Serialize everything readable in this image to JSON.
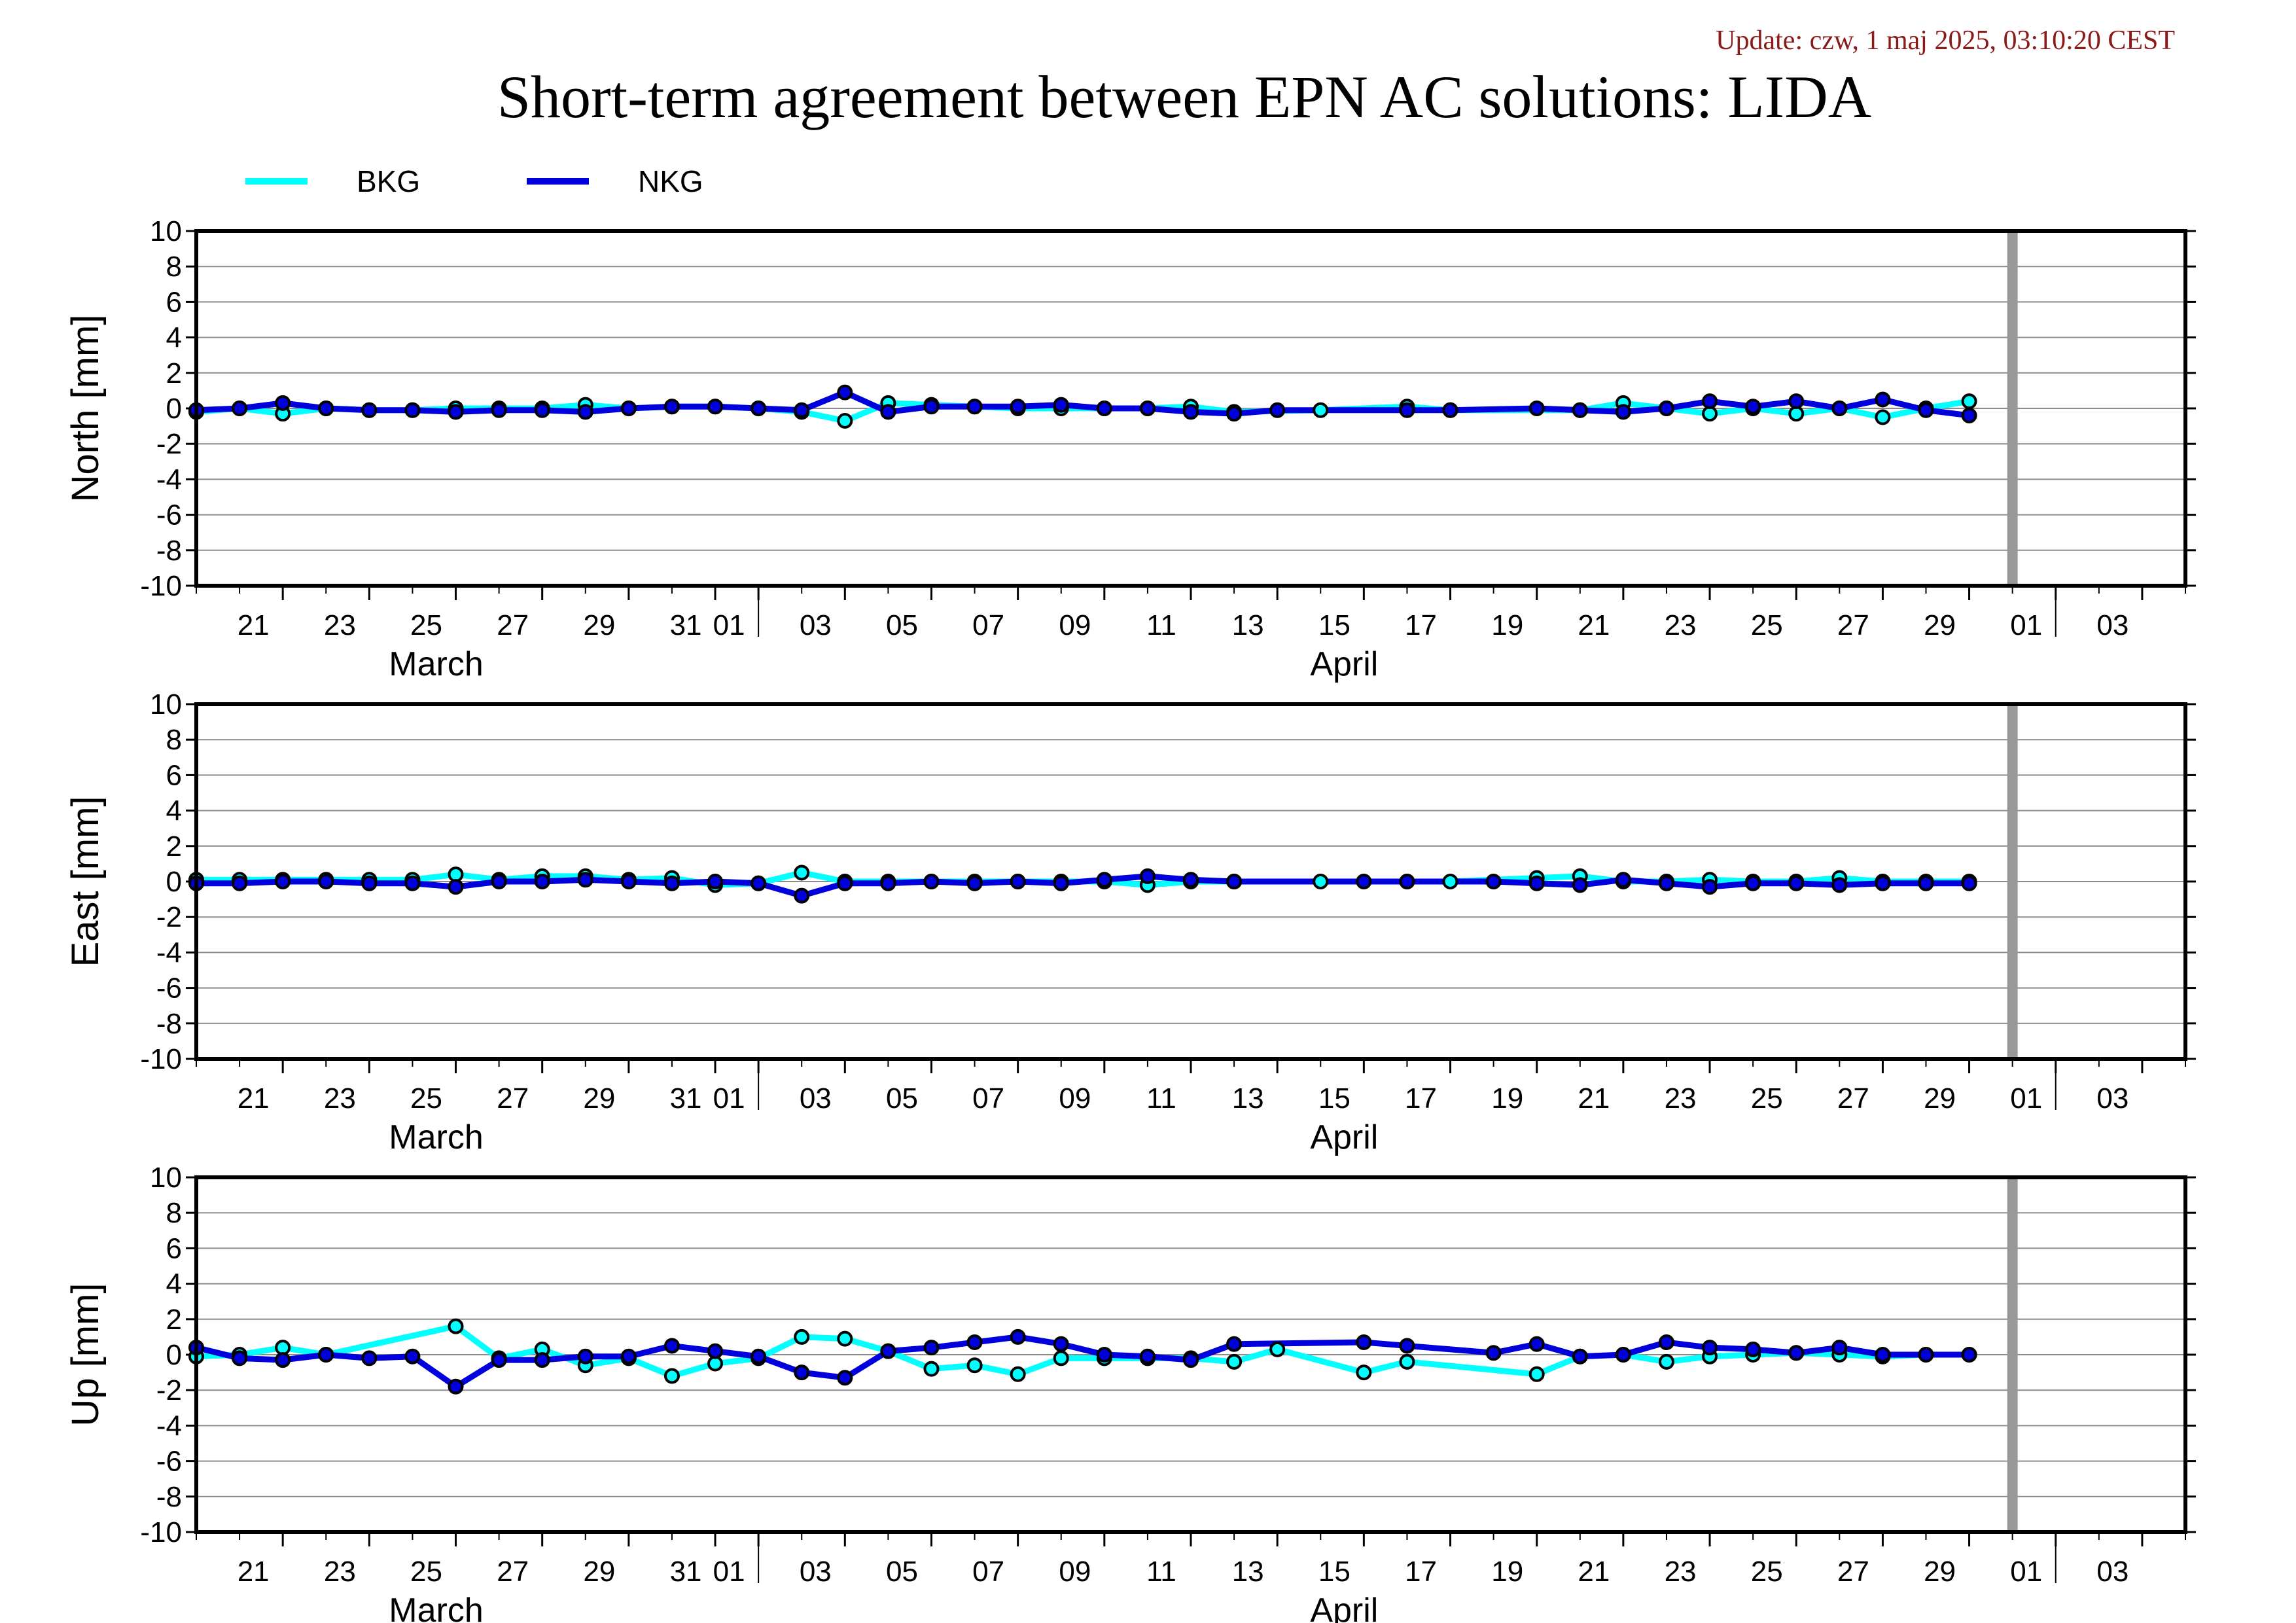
{
  "header": {
    "update": "Update: czw, 1 maj 2025, 03:10:20 CEST",
    "title": "Short-term agreement between EPN AC solutions: LIDA"
  },
  "chart_data": {
    "type": "line",
    "title": "Short-term agreement between EPN AC solutions: LIDA",
    "x_axis": {
      "type": "date",
      "range": [
        "2025-03-19",
        "2025-05-04"
      ],
      "tick_labels": [
        "21",
        "23",
        "25",
        "27",
        "29",
        "31",
        "01",
        "03",
        "05",
        "07",
        "09",
        "11",
        "13",
        "15",
        "17",
        "19",
        "21",
        "23",
        "25",
        "27",
        "29",
        "01",
        "03"
      ],
      "tick_dates": [
        "2025-03-21",
        "2025-03-23",
        "2025-03-25",
        "2025-03-27",
        "2025-03-29",
        "2025-03-31",
        "2025-04-01",
        "2025-04-03",
        "2025-04-05",
        "2025-04-07",
        "2025-04-09",
        "2025-04-11",
        "2025-04-13",
        "2025-04-15",
        "2025-04-17",
        "2025-04-19",
        "2025-04-21",
        "2025-04-23",
        "2025-04-25",
        "2025-04-27",
        "2025-04-29",
        "2025-05-01",
        "2025-05-03"
      ],
      "month_labels": [
        {
          "label": "March",
          "date": "2025-03-25"
        },
        {
          "label": "April",
          "date": "2025-04-15"
        }
      ],
      "month_boundaries": [
        "2025-04-01",
        "2025-05-01"
      ],
      "current_date_marker": "2025-04-30"
    },
    "legend": {
      "placement": "top-left",
      "entries": [
        {
          "name": "BKG",
          "color": "#00ffff"
        },
        {
          "name": "NKG",
          "color": "#0000dd"
        }
      ]
    },
    "dates": [
      "2025-03-19",
      "2025-03-20",
      "2025-03-21",
      "2025-03-22",
      "2025-03-23",
      "2025-03-24",
      "2025-03-25",
      "2025-03-26",
      "2025-03-27",
      "2025-03-28",
      "2025-03-29",
      "2025-03-30",
      "2025-03-31",
      "2025-04-01",
      "2025-04-02",
      "2025-04-03",
      "2025-04-04",
      "2025-04-05",
      "2025-04-06",
      "2025-04-07",
      "2025-04-08",
      "2025-04-09",
      "2025-04-10",
      "2025-04-11",
      "2025-04-12",
      "2025-04-13",
      "2025-04-14",
      "2025-04-15",
      "2025-04-16",
      "2025-04-17",
      "2025-04-18",
      "2025-04-19",
      "2025-04-20",
      "2025-04-21",
      "2025-04-22",
      "2025-04-23",
      "2025-04-24",
      "2025-04-25",
      "2025-04-26",
      "2025-04-27",
      "2025-04-28",
      "2025-04-29"
    ],
    "panels": [
      {
        "ylabel": "North [mm]",
        "ylim": [
          -10,
          10
        ],
        "yticks": [
          "10",
          "8",
          "6",
          "4",
          "2",
          "0",
          "-2",
          "-4",
          "-6",
          "-8",
          "-10"
        ],
        "grid": true,
        "series": [
          {
            "name": "BKG",
            "color": "#00ffff",
            "values": [
              -0.2,
              0.0,
              -0.3,
              0.0,
              -0.1,
              -0.1,
              0.0,
              0.0,
              0.0,
              0.2,
              0.0,
              0.1,
              0.1,
              0.0,
              -0.2,
              -0.7,
              0.3,
              0.2,
              0.1,
              0.0,
              0.0,
              0.0,
              0.0,
              0.1,
              -0.2,
              null,
              -0.1,
              null,
              0.1,
              -0.1,
              null,
              null,
              -0.1,
              0.3,
              0.0,
              -0.3,
              0.0,
              -0.3,
              0.0,
              -0.5,
              0.0,
              0.4
            ]
          },
          {
            "name": "NKG",
            "color": "#0000dd",
            "values": [
              -0.1,
              0.0,
              0.3,
              0.0,
              -0.1,
              -0.1,
              -0.2,
              -0.1,
              -0.1,
              -0.2,
              0.0,
              0.1,
              0.1,
              0.0,
              -0.1,
              0.9,
              -0.2,
              0.1,
              0.1,
              0.1,
              0.2,
              0.0,
              0.0,
              -0.2,
              -0.3,
              -0.1,
              null,
              null,
              -0.1,
              -0.1,
              null,
              0.0,
              -0.1,
              -0.2,
              0.0,
              0.4,
              0.1,
              0.4,
              0.0,
              0.5,
              -0.1,
              -0.4
            ]
          }
        ]
      },
      {
        "ylabel": "East [mm]",
        "ylim": [
          -10,
          10
        ],
        "yticks": [
          "10",
          "8",
          "6",
          "4",
          "2",
          "0",
          "-2",
          "-4",
          "-6",
          "-8",
          "-10"
        ],
        "grid": true,
        "series": [
          {
            "name": "BKG",
            "color": "#00ffff",
            "values": [
              0.1,
              0.1,
              0.1,
              0.1,
              0.1,
              0.1,
              0.4,
              0.1,
              0.3,
              0.3,
              0.1,
              0.2,
              -0.2,
              -0.1,
              0.5,
              0.0,
              0.0,
              0.0,
              0.0,
              0.0,
              0.0,
              0.0,
              -0.2,
              0.0,
              0.0,
              null,
              0.0,
              null,
              0.0,
              0.0,
              null,
              0.2,
              0.3,
              0.0,
              0.0,
              0.1,
              0.0,
              0.0,
              0.2,
              0.0,
              0.0,
              0.0
            ]
          },
          {
            "name": "NKG",
            "color": "#0000dd",
            "values": [
              -0.1,
              -0.1,
              0.0,
              0.0,
              -0.1,
              -0.1,
              -0.3,
              0.0,
              0.0,
              0.1,
              0.0,
              -0.1,
              0.0,
              -0.1,
              -0.8,
              -0.1,
              -0.1,
              0.0,
              -0.1,
              0.0,
              -0.1,
              0.1,
              0.3,
              0.1,
              0.0,
              null,
              null,
              0.0,
              0.0,
              null,
              0.0,
              -0.1,
              -0.2,
              0.1,
              -0.1,
              -0.3,
              -0.1,
              -0.1,
              -0.2,
              -0.1,
              -0.1,
              -0.1
            ]
          }
        ]
      },
      {
        "ylabel": "Up [mm]",
        "ylim": [
          -10,
          10
        ],
        "yticks": [
          "10",
          "8",
          "6",
          "4",
          "2",
          "0",
          "-2",
          "-4",
          "-6",
          "-8",
          "-10"
        ],
        "grid": true,
        "series": [
          {
            "name": "BKG",
            "color": "#00ffff",
            "values": [
              -0.1,
              0.0,
              0.4,
              0.0,
              null,
              null,
              1.6,
              -0.2,
              0.3,
              -0.6,
              -0.2,
              -1.2,
              -0.5,
              -0.2,
              1.0,
              0.9,
              0.2,
              -0.8,
              -0.6,
              -1.1,
              -0.2,
              -0.2,
              -0.2,
              -0.2,
              -0.4,
              0.3,
              null,
              -1.0,
              -0.4,
              null,
              null,
              -1.1,
              -0.1,
              0.0,
              -0.4,
              -0.1,
              0.0,
              0.1,
              0.0,
              -0.1,
              0.0,
              0.0
            ]
          },
          {
            "name": "NKG",
            "color": "#0000dd",
            "values": [
              0.4,
              -0.2,
              -0.3,
              0.0,
              -0.2,
              -0.1,
              -1.8,
              -0.3,
              -0.3,
              -0.1,
              -0.1,
              0.5,
              0.2,
              -0.1,
              -1.0,
              -1.3,
              0.2,
              0.4,
              0.7,
              1.0,
              0.6,
              0.0,
              -0.1,
              -0.3,
              0.6,
              null,
              null,
              0.7,
              0.5,
              null,
              0.1,
              0.6,
              -0.1,
              0.0,
              0.7,
              0.4,
              0.3,
              0.1,
              0.4,
              0.0,
              0.0,
              0.0
            ]
          }
        ]
      }
    ]
  }
}
